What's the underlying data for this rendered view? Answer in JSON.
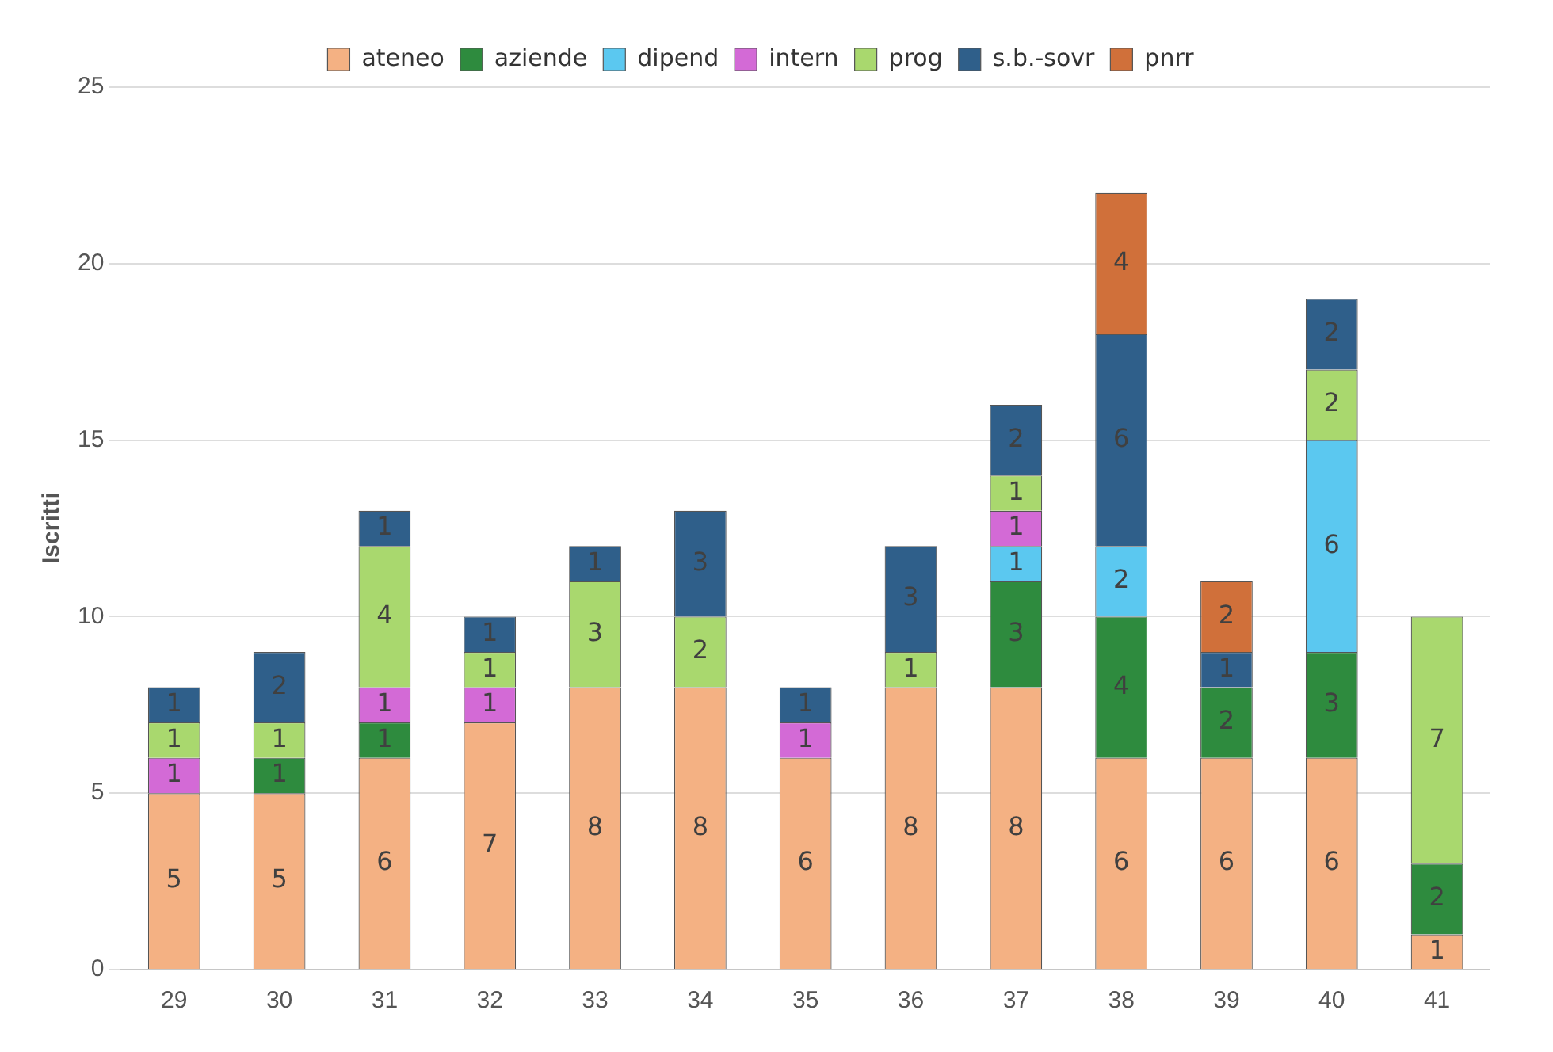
{
  "chart_data": {
    "type": "bar",
    "stacked": true,
    "ylabel": "Iscritti",
    "categories": [
      "29",
      "30",
      "31",
      "32",
      "33",
      "34",
      "35",
      "36",
      "37",
      "38",
      "39",
      "40",
      "41"
    ],
    "series": [
      {
        "name": "ateneo",
        "color": "#f4b183",
        "values": [
          5,
          5,
          6,
          7,
          8,
          8,
          6,
          8,
          8,
          6,
          6,
          6,
          1
        ]
      },
      {
        "name": "aziende",
        "color": "#2e8b3e",
        "values": [
          null,
          1,
          1,
          null,
          null,
          null,
          null,
          null,
          3,
          4,
          2,
          3,
          2
        ]
      },
      {
        "name": "dipend",
        "color": "#5bc8f0",
        "values": [
          null,
          null,
          null,
          null,
          null,
          null,
          null,
          null,
          1,
          2,
          null,
          6,
          null
        ]
      },
      {
        "name": "intern",
        "color": "#d36ad6",
        "values": [
          1,
          null,
          1,
          1,
          null,
          null,
          1,
          null,
          1,
          null,
          null,
          null,
          null
        ]
      },
      {
        "name": "prog",
        "color": "#a9d86e",
        "values": [
          1,
          1,
          4,
          1,
          3,
          2,
          null,
          1,
          1,
          null,
          null,
          2,
          7
        ]
      },
      {
        "name": "s.b.-sovr",
        "color": "#2f5f8a",
        "values": [
          1,
          2,
          1,
          1,
          1,
          3,
          1,
          3,
          2,
          6,
          1,
          2,
          null
        ]
      },
      {
        "name": "pnrr",
        "color": "#d0703a",
        "values": [
          null,
          null,
          null,
          null,
          null,
          null,
          null,
          null,
          null,
          4,
          2,
          null,
          null
        ]
      }
    ],
    "ylim": [
      0,
      25
    ],
    "yticks": [
      0,
      5,
      10,
      15,
      20,
      25
    ],
    "grid": "y",
    "legend": "top",
    "data_labels": true
  }
}
